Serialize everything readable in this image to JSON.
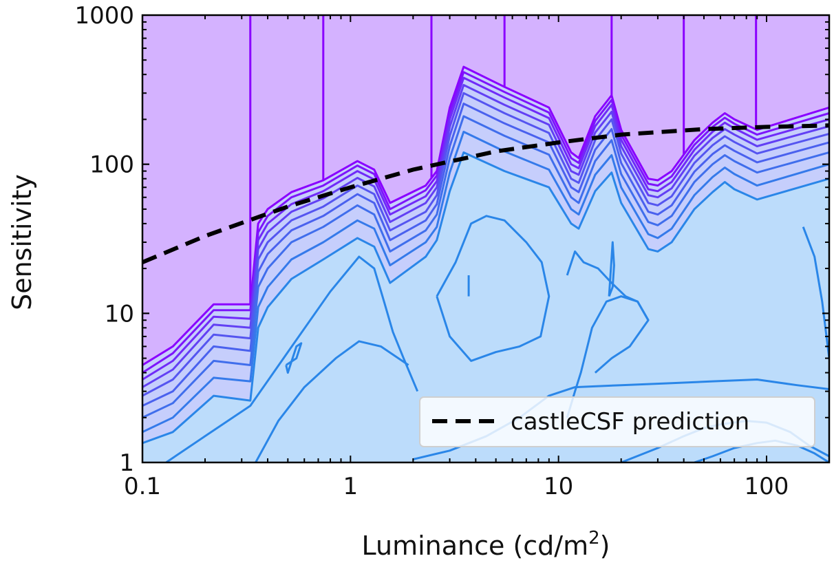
{
  "chart_data": {
    "type": "contour",
    "title": "",
    "xlabel": "Luminance (cd/m",
    "xlabel_sup": "2",
    "xlabel_end": ")",
    "ylabel": "Sensitivity",
    "x_scale": "log",
    "y_scale": "log",
    "xlim": [
      0.1,
      200
    ],
    "ylim": [
      1,
      1000
    ],
    "x_ticks": [
      {
        "value": 0.1,
        "label": "0.1"
      },
      {
        "value": 1,
        "label": "1"
      },
      {
        "value": 10,
        "label": "10"
      },
      {
        "value": 100,
        "label": "100"
      }
    ],
    "y_ticks": [
      {
        "value": 1,
        "label": "1"
      },
      {
        "value": 10,
        "label": "10"
      },
      {
        "value": 100,
        "label": "100"
      },
      {
        "value": 1000,
        "label": "1000"
      }
    ],
    "grid": false,
    "legend": {
      "position": "bottom-right",
      "entries": [
        "castleCSF prediction"
      ]
    },
    "colors": {
      "outer_fill": "#d4b2ff",
      "middle_fill": "#c6cefc",
      "inner_fill": "#bcdcfb",
      "line_dark": "#8a00ff",
      "line_mid": "#5555f0",
      "line_light": "#2a86e8",
      "prediction": "#000000"
    },
    "series": [
      {
        "name": "castleCSF prediction",
        "style": "dashed",
        "x": [
          0.1,
          0.2,
          0.5,
          1,
          2,
          5,
          10,
          20,
          50,
          100,
          200
        ],
        "y": [
          22,
          33,
          52,
          70,
          92,
          122,
          140,
          158,
          172,
          178,
          182
        ]
      }
    ],
    "contour_levels": [
      {
        "x": [
          0.1,
          0.14,
          0.22,
          0.33,
          0.36,
          0.4,
          0.52,
          0.74,
          1.08,
          1.3,
          1.55,
          2.3,
          2.6,
          3.0,
          3.5,
          5.5,
          9,
          11.5,
          12.5,
          15,
          18,
          20,
          27,
          30,
          35,
          45,
          55,
          63,
          70,
          90,
          200
        ],
        "y": [
          4.5,
          6,
          11.5,
          11.5,
          40,
          50,
          65,
          78,
          105,
          92,
          55,
          72,
          90,
          240,
          450,
          330,
          240,
          120,
          110,
          210,
          290,
          170,
          80,
          78,
          90,
          145,
          190,
          220,
          200,
          170,
          240
        ]
      },
      {
        "x": [
          0.1,
          0.14,
          0.22,
          0.33,
          0.36,
          0.4,
          0.52,
          0.74,
          1.08,
          1.3,
          1.55,
          2.3,
          2.6,
          3.0,
          3.5,
          5.5,
          9,
          11.5,
          12.5,
          15,
          18,
          20,
          27,
          30,
          35,
          45,
          55,
          63,
          70,
          90,
          200
        ],
        "y": [
          4.0,
          5.4,
          10.5,
          10.5,
          35,
          45,
          60,
          72,
          98,
          86,
          50,
          67,
          84,
          220,
          415,
          305,
          222,
          110,
          102,
          195,
          270,
          158,
          74,
          72,
          83,
          135,
          178,
          205,
          187,
          158,
          220
        ]
      },
      {
        "x": [
          0.1,
          0.14,
          0.22,
          0.33,
          0.36,
          0.4,
          0.52,
          0.74,
          1.08,
          1.3,
          1.55,
          2.3,
          2.6,
          3.0,
          3.5,
          5.5,
          9,
          11.5,
          12.5,
          15,
          18,
          20,
          27,
          30,
          35,
          45,
          55,
          63,
          70,
          90,
          200
        ],
        "y": [
          3.6,
          4.8,
          9.5,
          9.2,
          31,
          40,
          54,
          66,
          90,
          79,
          46,
          61,
          77,
          200,
          380,
          280,
          204,
          100,
          94,
          180,
          250,
          146,
          68,
          66,
          76,
          125,
          165,
          190,
          174,
          146,
          200
        ]
      },
      {
        "x": [
          0.1,
          0.14,
          0.22,
          0.33,
          0.36,
          0.4,
          0.52,
          0.74,
          1.08,
          1.3,
          1.55,
          2.3,
          2.6,
          3.0,
          3.5,
          5.5,
          9,
          11.5,
          12.5,
          15,
          18,
          20,
          27,
          30,
          35,
          45,
          55,
          63,
          70,
          90,
          200
        ],
        "y": [
          3.2,
          4.2,
          8.4,
          8.0,
          27,
          35,
          48,
          59,
          81,
          71,
          41,
          55,
          70,
          178,
          340,
          250,
          184,
          90,
          85,
          163,
          225,
          132,
          62,
          60,
          69,
          114,
          150,
          172,
          158,
          132,
          180
        ]
      },
      {
        "x": [
          0.1,
          0.14,
          0.22,
          0.33,
          0.36,
          0.4,
          0.52,
          0.74,
          1.08,
          1.3,
          1.55,
          2.3,
          2.6,
          3.0,
          3.5,
          5.5,
          9,
          11.5,
          12.5,
          15,
          18,
          20,
          27,
          30,
          35,
          45,
          55,
          63,
          70,
          90,
          200
        ],
        "y": [
          2.8,
          3.6,
          7.2,
          6.8,
          23,
          30,
          42,
          52,
          72,
          63,
          36,
          48,
          62,
          155,
          300,
          220,
          162,
          80,
          75,
          145,
          200,
          118,
          55,
          53,
          61,
          102,
          134,
          154,
          141,
          118,
          160
        ]
      },
      {
        "x": [
          0.1,
          0.14,
          0.22,
          0.33,
          0.36,
          0.4,
          0.52,
          0.74,
          1.08,
          1.3,
          1.55,
          2.3,
          2.6,
          3.0,
          3.5,
          5.5,
          9,
          11.5,
          12.5,
          15,
          18,
          20,
          27,
          30,
          35,
          45,
          55,
          63,
          70,
          90,
          200
        ],
        "y": [
          2.4,
          3.0,
          6.0,
          5.6,
          19,
          25,
          36,
          45,
          63,
          55,
          31,
          42,
          54,
          132,
          255,
          188,
          140,
          70,
          65,
          125,
          172,
          102,
          48,
          46,
          53,
          89,
          117,
          134,
          123,
          103,
          140
        ]
      },
      {
        "x": [
          0.1,
          0.14,
          0.22,
          0.33,
          0.36,
          0.4,
          0.52,
          0.74,
          1.08,
          1.3,
          1.55,
          2.3,
          2.6,
          3.0,
          3.5,
          5.5,
          9,
          11.5,
          12.5,
          15,
          18,
          20,
          27,
          30,
          35,
          45,
          55,
          63,
          70,
          90,
          200
        ],
        "y": [
          2.0,
          2.5,
          4.8,
          4.5,
          15,
          20,
          30,
          38,
          53,
          46,
          26,
          36,
          46,
          110,
          210,
          155,
          116,
          60,
          55,
          105,
          145,
          86,
          41,
          39,
          45,
          76,
          100,
          115,
          105,
          88,
          120
        ]
      },
      {
        "x": [
          0.1,
          0.14,
          0.22,
          0.33,
          0.36,
          0.4,
          0.52,
          0.74,
          1.08,
          1.3,
          1.55,
          2.3,
          2.6,
          3.0,
          3.5,
          5.5,
          9,
          11.5,
          12.5,
          15,
          18,
          20,
          27,
          30,
          35,
          45,
          55,
          63,
          70,
          90,
          200
        ],
        "y": [
          1.6,
          2.0,
          3.7,
          3.5,
          11,
          15,
          23,
          30,
          42,
          37,
          21,
          30,
          38,
          88,
          165,
          122,
          92,
          50,
          46,
          85,
          115,
          70,
          34,
          32,
          37,
          62,
          82,
          95,
          86,
          72,
          100
        ]
      },
      {
        "x": [
          0.1,
          0.14,
          0.22,
          0.33,
          0.36,
          0.4,
          0.52,
          0.74,
          1.08,
          1.3,
          1.55,
          2.3,
          2.6,
          3.0,
          3.5,
          5.5,
          9,
          11.5,
          12.5,
          15,
          18,
          20,
          27,
          30,
          35,
          45,
          55,
          63,
          70,
          90,
          200
        ],
        "y": [
          1.35,
          1.6,
          2.8,
          2.6,
          8,
          11,
          17,
          23,
          32,
          28,
          16,
          24,
          31,
          66,
          120,
          90,
          70,
          40,
          37,
          66,
          88,
          55,
          27,
          26,
          30,
          50,
          65,
          76,
          68,
          58,
          80
        ]
      }
    ],
    "inner_contours": [
      {
        "x": [
          0.13,
          0.2,
          0.33,
          0.5,
          0.8,
          1.1,
          1.3,
          1.45,
          1.6,
          1.8,
          2.1
        ],
        "y": [
          1.0,
          1.5,
          2.4,
          5.5,
          14,
          24,
          20,
          12,
          7.5,
          5,
          3
        ]
      },
      {
        "x": [
          0.35,
          0.45,
          0.6,
          0.85,
          1.1,
          1.4,
          1.9
        ],
        "y": [
          1.0,
          1.9,
          3.2,
          5.0,
          6.5,
          6.0,
          4.5
        ]
      },
      {
        "x": [
          2.6,
          3.2,
          3.8,
          4.5,
          5.5,
          7,
          8.3,
          9.0,
          8.2,
          6.5,
          5.0,
          3.8,
          3.0,
          2.6
        ],
        "y": [
          13,
          22,
          40,
          45,
          42,
          30,
          22,
          13,
          7,
          6,
          5.5,
          4.8,
          7,
          13
        ]
      },
      {
        "x": [
          0.49,
          0.55,
          0.58,
          0.55,
          0.5,
          0.49
        ],
        "y": [
          4.5,
          5.0,
          6.3,
          6.0,
          4.0,
          4.5
        ]
      },
      {
        "x": [
          3.7,
          3.7
        ],
        "y": [
          13,
          18
        ]
      },
      {
        "x": [
          11,
          12,
          13.2,
          15.5,
          18,
          21,
          24,
          27
        ],
        "y": [
          18,
          26,
          22,
          20,
          16,
          13,
          12,
          9
        ]
      },
      {
        "x": [
          17.5,
          18.2,
          18.5,
          18.2,
          17.5
        ],
        "y": [
          13,
          15,
          21,
          30,
          13
        ]
      },
      {
        "x": [
          11,
          12,
          12.8,
          14.5,
          17,
          20,
          24,
          27,
          22,
          18,
          15
        ],
        "y": [
          2,
          3,
          4,
          8,
          12,
          13,
          12,
          9,
          6,
          5,
          4
        ]
      },
      {
        "x": [
          2.0,
          3.0,
          4.5,
          6.5,
          9,
          12,
          20,
          35,
          55,
          90,
          140,
          200
        ],
        "y": [
          1.05,
          1.2,
          1.5,
          2.0,
          2.8,
          3.2,
          3.3,
          3.4,
          3.5,
          3.6,
          3.3,
          3.1
        ]
      },
      {
        "x": [
          20,
          30,
          40,
          50,
          60,
          80,
          100,
          130,
          160,
          200
        ],
        "y": [
          1.0,
          1.25,
          1.5,
          1.7,
          1.8,
          1.9,
          1.85,
          1.6,
          1.3,
          1.1
        ]
      },
      {
        "x": [
          45,
          55,
          70,
          90,
          110,
          140,
          170,
          200
        ],
        "y": [
          1.0,
          1.1,
          1.25,
          1.35,
          1.4,
          1.3,
          1.15,
          1.0
        ]
      },
      {
        "x": [
          150,
          170,
          185,
          200
        ],
        "y": [
          38,
          24,
          12,
          5
        ]
      }
    ]
  }
}
